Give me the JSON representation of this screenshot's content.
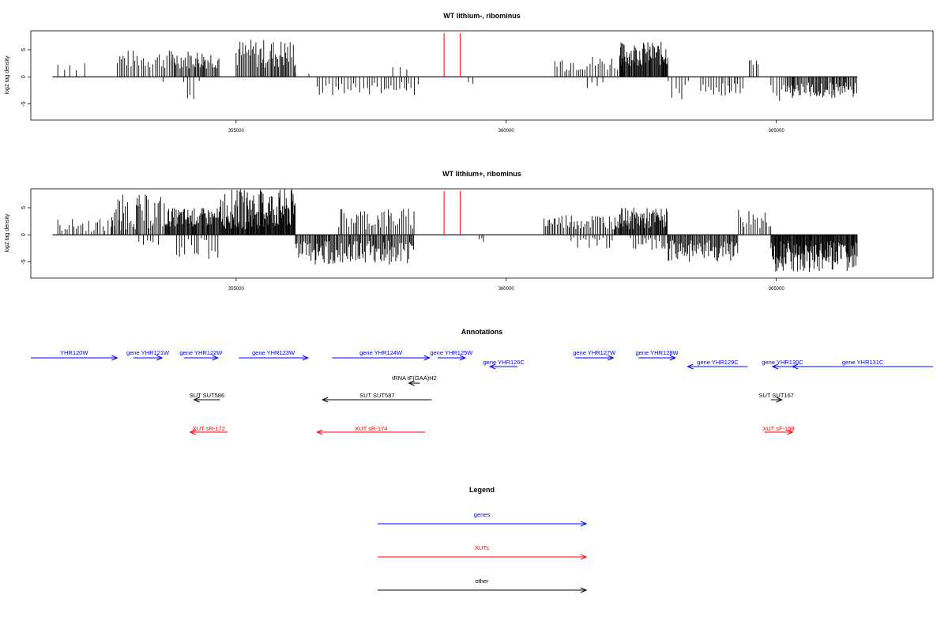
{
  "colors": {
    "gene": "#0000ff",
    "xut": "#ff0000",
    "other": "#000000",
    "marker": "#ff0000",
    "bar": "#000000"
  },
  "chart_data": [
    {
      "type": "bar",
      "title": "WT lithium-, ribominus",
      "ylabel": "log2 tag density",
      "xlim": [
        351200,
        367900
      ],
      "ylim": [
        -8,
        8.5
      ],
      "xticks": [
        355000,
        360000,
        365000
      ],
      "xticklabels": [
        "355000",
        "360000",
        "365000"
      ],
      "yticks": [
        -5,
        0,
        5
      ],
      "yticklabels": [
        "-5",
        "0",
        "5"
      ],
      "baseline": [
        351600,
        366500
      ],
      "markers": [
        358850,
        359150
      ],
      "grid": false,
      "segments": [
        {
          "from": 351700,
          "to": 352300,
          "sign": 1,
          "min": 1,
          "max": 3.5,
          "step": 120
        },
        {
          "from": 352800,
          "to": 353800,
          "sign": 1,
          "min": 1.5,
          "max": 5,
          "step": 40
        },
        {
          "from": 353650,
          "to": 354400,
          "sign": -1,
          "min": 0.5,
          "max": 1.5,
          "step": 300
        },
        {
          "from": 354100,
          "to": 354250,
          "sign": -1,
          "min": 3,
          "max": 4.3,
          "step": 60
        },
        {
          "from": 353800,
          "to": 354700,
          "sign": 1,
          "min": 1.5,
          "max": 5,
          "step": 22
        },
        {
          "from": 355000,
          "to": 356100,
          "sign": 1,
          "min": 1.5,
          "max": 7,
          "step": 22
        },
        {
          "from": 356100,
          "to": 356500,
          "sign": 1,
          "min": 0.3,
          "max": 1.2,
          "step": 180
        },
        {
          "from": 356500,
          "to": 358400,
          "sign": -1,
          "min": 1,
          "max": 3.5,
          "step": 55
        },
        {
          "from": 357900,
          "to": 358200,
          "sign": 1,
          "min": 0.5,
          "max": 2,
          "step": 100
        },
        {
          "from": 359300,
          "to": 359400,
          "sign": -1,
          "min": 1,
          "max": 1.5,
          "step": 100
        },
        {
          "from": 360900,
          "to": 362200,
          "sign": 1,
          "min": 1,
          "max": 4,
          "step": 45
        },
        {
          "from": 361500,
          "to": 361800,
          "sign": -1,
          "min": 1,
          "max": 2.5,
          "step": 100
        },
        {
          "from": 362100,
          "to": 363000,
          "sign": 1,
          "min": 2,
          "max": 6.5,
          "step": 14
        },
        {
          "from": 363000,
          "to": 363400,
          "sign": -1,
          "min": 0.5,
          "max": 4.5,
          "step": 60
        },
        {
          "from": 363600,
          "to": 364400,
          "sign": -1,
          "min": 1,
          "max": 3.5,
          "step": 40
        },
        {
          "from": 364500,
          "to": 364700,
          "sign": 1,
          "min": 2,
          "max": 3.5,
          "step": 50
        },
        {
          "from": 364900,
          "to": 365200,
          "sign": -1,
          "min": 1,
          "max": 5.5,
          "step": 50
        },
        {
          "from": 365200,
          "to": 366500,
          "sign": -1,
          "min": 1,
          "max": 4,
          "step": 20
        }
      ]
    },
    {
      "type": "bar",
      "title": "WT lithium+, ribominus",
      "ylabel": "log2 tag density",
      "xlim": [
        351200,
        367900
      ],
      "ylim": [
        -8,
        8.5
      ],
      "xticks": [
        355000,
        360000,
        365000
      ],
      "xticklabels": [
        "355000",
        "360000",
        "365000"
      ],
      "yticks": [
        -5,
        0,
        5
      ],
      "yticklabels": [
        "-5",
        "0",
        "5"
      ],
      "baseline": [
        351600,
        366500
      ],
      "markers": [
        358850,
        359150
      ],
      "grid": false,
      "segments": [
        {
          "from": 351700,
          "to": 352900,
          "sign": 1,
          "min": 0.5,
          "max": 3,
          "step": 45
        },
        {
          "from": 352700,
          "to": 353700,
          "sign": 1,
          "min": 1,
          "max": 7.5,
          "step": 25
        },
        {
          "from": 353200,
          "to": 353600,
          "sign": -1,
          "min": 0.5,
          "max": 2,
          "step": 80
        },
        {
          "from": 353700,
          "to": 354700,
          "sign": 1,
          "min": 1.5,
          "max": 5,
          "step": 15
        },
        {
          "from": 353900,
          "to": 354700,
          "sign": -1,
          "min": 0.5,
          "max": 4.5,
          "step": 50
        },
        {
          "from": 354700,
          "to": 356100,
          "sign": 1,
          "min": 1,
          "max": 8.5,
          "step": 12
        },
        {
          "from": 356100,
          "to": 358300,
          "sign": -1,
          "min": 1,
          "max": 5.5,
          "step": 20
        },
        {
          "from": 356900,
          "to": 358300,
          "sign": 1,
          "min": 1,
          "max": 5,
          "step": 35
        },
        {
          "from": 359500,
          "to": 359600,
          "sign": -1,
          "min": 0.5,
          "max": 1.5,
          "step": 50
        },
        {
          "from": 360700,
          "to": 362000,
          "sign": 1,
          "min": 1,
          "max": 4,
          "step": 30
        },
        {
          "from": 361200,
          "to": 362000,
          "sign": -1,
          "min": 0.5,
          "max": 2.5,
          "step": 60
        },
        {
          "from": 362000,
          "to": 363000,
          "sign": 1,
          "min": 1,
          "max": 5,
          "step": 15
        },
        {
          "from": 362300,
          "to": 363000,
          "sign": -1,
          "min": 0.5,
          "max": 3,
          "step": 40
        },
        {
          "from": 363000,
          "to": 364300,
          "sign": -1,
          "min": 1,
          "max": 5,
          "step": 18
        },
        {
          "from": 364300,
          "to": 364900,
          "sign": 1,
          "min": 1,
          "max": 5,
          "step": 35
        },
        {
          "from": 364900,
          "to": 366500,
          "sign": -1,
          "min": 1,
          "max": 7,
          "step": 12
        }
      ]
    }
  ],
  "annotations": {
    "title": "Annotations",
    "features": [
      {
        "label": "YHR120W",
        "type": "gene",
        "x1": 351200,
        "x2": 352800,
        "dir": 1,
        "row": 0
      },
      {
        "label": "gene YHR121W",
        "type": "gene",
        "x1": 353100,
        "x2": 353630,
        "dir": 1,
        "row": 0
      },
      {
        "label": "gene YHR122W",
        "type": "gene",
        "x1": 354040,
        "x2": 354660,
        "dir": 1,
        "row": 0
      },
      {
        "label": "gene YHR123W",
        "type": "gene",
        "x1": 355050,
        "x2": 356330,
        "dir": 1,
        "row": 0
      },
      {
        "label": "gene YHR124W",
        "type": "gene",
        "x1": 356780,
        "x2": 358580,
        "dir": 1,
        "row": 0
      },
      {
        "label": "gene YHR125W",
        "type": "gene",
        "x1": 358730,
        "x2": 359240,
        "dir": 1,
        "row": 0
      },
      {
        "label": "gene YHR127W",
        "type": "gene",
        "x1": 361280,
        "x2": 361980,
        "dir": 1,
        "row": 0
      },
      {
        "label": "gene YHR128W",
        "type": "gene",
        "x1": 362450,
        "x2": 363130,
        "dir": 1,
        "row": 0
      },
      {
        "label": "gene YHR126C",
        "type": "gene",
        "x1": 359700,
        "x2": 360210,
        "dir": -1,
        "row": 1
      },
      {
        "label": "gene YHR129C",
        "type": "gene",
        "x1": 363360,
        "x2": 364470,
        "dir": -1,
        "row": 1
      },
      {
        "label": "gene YHR130C",
        "type": "gene",
        "x1": 364930,
        "x2": 365300,
        "dir": -1,
        "row": 1
      },
      {
        "label": "gene YHR131C",
        "type": "gene",
        "x1": 365300,
        "x2": 367900,
        "dir": -1,
        "row": 1
      },
      {
        "label": "tRNA tF(GAA)H2",
        "type": "other",
        "x1": 358250,
        "x2": 358350,
        "dir": -1,
        "row": 2
      },
      {
        "label": "SUT SUT586",
        "type": "other",
        "x1": 354220,
        "x2": 354700,
        "dir": -1,
        "row": 3
      },
      {
        "label": "SUT SUT587",
        "type": "other",
        "x1": 356600,
        "x2": 358620,
        "dir": -1,
        "row": 3
      },
      {
        "label": "SUT SUT167",
        "type": "other",
        "x1": 365000,
        "x2": 365000,
        "dir": 1,
        "row": 3
      },
      {
        "label": "XUT sR-172",
        "type": "xut",
        "x1": 354150,
        "x2": 354840,
        "dir": -1,
        "row": 4
      },
      {
        "label": "XUT sR-174",
        "type": "xut",
        "x1": 356500,
        "x2": 358500,
        "dir": -1,
        "row": 4
      },
      {
        "label": "XUT sF-158",
        "type": "xut",
        "x1": 364780,
        "x2": 365300,
        "dir": 1,
        "row": 4
      }
    ]
  },
  "legend": {
    "title": "Legend",
    "items": [
      {
        "label": "genes",
        "type": "gene"
      },
      {
        "label": "XUTs",
        "type": "xut"
      },
      {
        "label": "other",
        "type": "other"
      }
    ]
  }
}
